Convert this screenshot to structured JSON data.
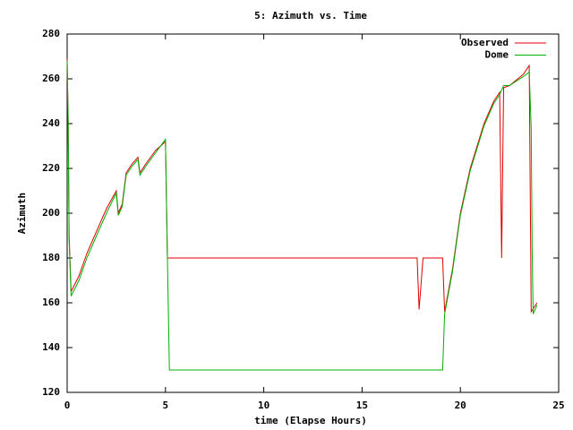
{
  "chart_data": {
    "type": "line",
    "title": "5: Azimuth vs. Time",
    "x_label": "time (Elapse Hours)",
    "y_label": "Azimuth",
    "xlim": [
      0,
      25
    ],
    "xticks": [
      0,
      5,
      10,
      15,
      20,
      25
    ],
    "ylim": [
      120,
      280
    ],
    "yticks": [
      120,
      140,
      160,
      180,
      200,
      220,
      240,
      260,
      280
    ],
    "legend": "top-right",
    "series": [
      {
        "name": "Observed",
        "color": "#e00000",
        "x": [
          0,
          0.05,
          0.1,
          0.2,
          0.6,
          1.0,
          1.5,
          2.0,
          2.5,
          2.6,
          2.8,
          3.0,
          3.3,
          3.6,
          3.7,
          4.0,
          4.5,
          5.0,
          5.1,
          17.8,
          17.9,
          18.1,
          19.1,
          19.2,
          19.6,
          20.0,
          20.5,
          21.2,
          21.7,
          22.0,
          22.1,
          22.2,
          22.5,
          23.2,
          23.5,
          23.6,
          23.9
        ],
        "values": [
          269,
          242,
          190,
          165,
          172,
          182,
          192,
          202,
          210,
          200,
          204,
          218,
          222,
          225,
          218,
          222,
          228,
          232,
          180,
          180,
          157,
          180,
          180,
          156,
          175,
          200,
          220,
          240,
          250,
          254,
          180,
          256,
          257,
          262,
          266,
          156,
          160
        ]
      },
      {
        "name": "Dome",
        "color": "#00b000",
        "x": [
          0,
          0.05,
          0.1,
          0.2,
          0.6,
          1.0,
          1.5,
          2.0,
          2.5,
          2.6,
          2.8,
          3.0,
          3.3,
          3.6,
          3.7,
          4.0,
          4.5,
          5.0,
          5.1,
          5.2,
          19.1,
          19.2,
          19.6,
          20.0,
          20.5,
          21.2,
          21.7,
          22.0,
          22.2,
          22.5,
          23.2,
          23.5,
          23.6,
          23.65,
          23.7,
          23.9
        ],
        "values": [
          268,
          242,
          188,
          163,
          170,
          180,
          190,
          200,
          209,
          199,
          203,
          217,
          221,
          224,
          217,
          221,
          227,
          233,
          180,
          130,
          130,
          155,
          174,
          199,
          219,
          239,
          249,
          253,
          257,
          257,
          261,
          263,
          238,
          183,
          155,
          159
        ]
      }
    ]
  }
}
